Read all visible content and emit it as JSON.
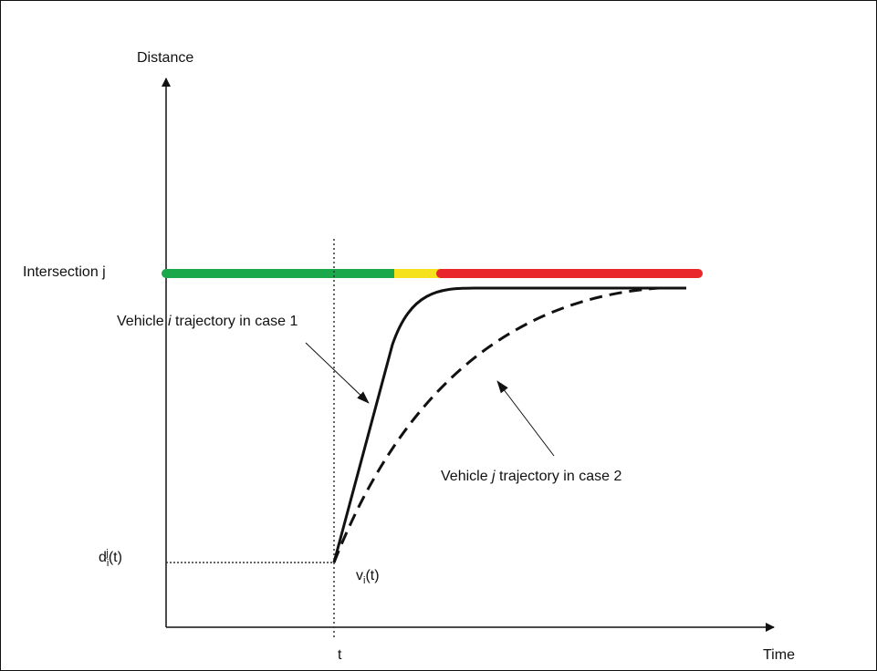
{
  "axes": {
    "y_label": "Distance",
    "x_label": "Time"
  },
  "intersection": {
    "label": "Intersection j"
  },
  "case1": {
    "parts": [
      "Vehicle ",
      "i",
      " trajectory in case 1"
    ]
  },
  "case2": {
    "parts": [
      "Vehicle ",
      "j",
      " trajectory in case 2"
    ]
  },
  "distance_marker": {
    "parts": [
      "d",
      "i",
      "j",
      "(t)"
    ]
  },
  "time_marker": {
    "label": "t"
  },
  "speed_marker": {
    "parts": [
      "v",
      "i",
      "(t)"
    ]
  }
}
